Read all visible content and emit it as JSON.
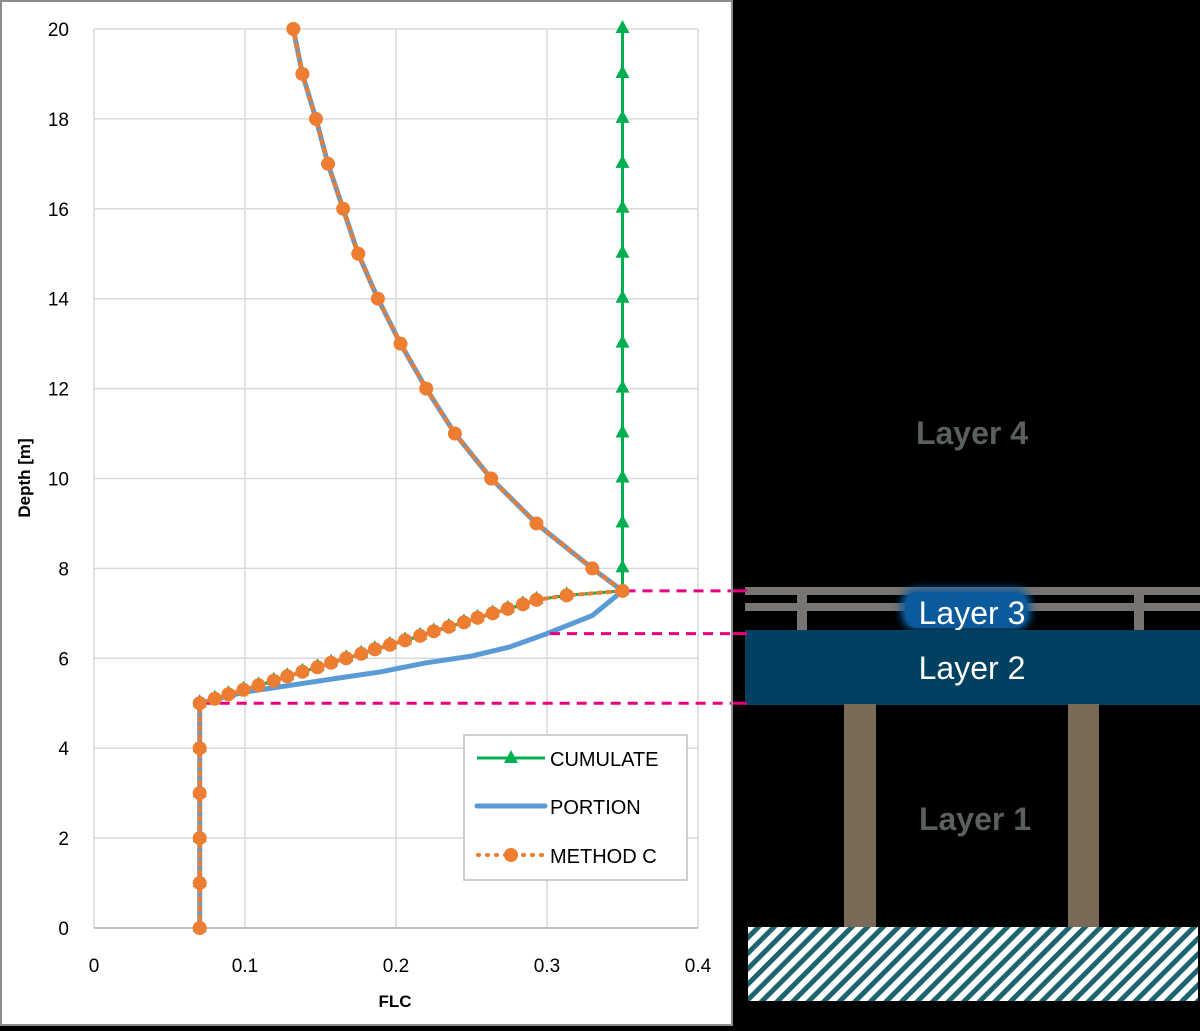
{
  "chart_data": {
    "type": "line",
    "title": "",
    "xlabel": "FLC",
    "ylabel": "Depth [m]",
    "xlim": [
      0,
      0.4
    ],
    "ylim": [
      0,
      20
    ],
    "x_ticks": [
      "0",
      "0.1",
      "0.2",
      "0.3",
      "0.4"
    ],
    "y_ticks": [
      "0",
      "2",
      "4",
      "6",
      "8",
      "10",
      "12",
      "14",
      "16",
      "18",
      "20"
    ],
    "grid": true,
    "legend_position": "lower-right inside",
    "series": [
      {
        "name": "CUMULATE",
        "color": "#00b050",
        "marker": "triangle",
        "points": [
          [
            0.07,
            0
          ],
          [
            0.07,
            1
          ],
          [
            0.07,
            2
          ],
          [
            0.07,
            3
          ],
          [
            0.07,
            4
          ],
          [
            0.07,
            5
          ],
          [
            0.08,
            5.1
          ],
          [
            0.089,
            5.2
          ],
          [
            0.099,
            5.3
          ],
          [
            0.109,
            5.4
          ],
          [
            0.119,
            5.5
          ],
          [
            0.128,
            5.6
          ],
          [
            0.138,
            5.7
          ],
          [
            0.148,
            5.8
          ],
          [
            0.157,
            5.9
          ],
          [
            0.167,
            6.0
          ],
          [
            0.177,
            6.1
          ],
          [
            0.186,
            6.2
          ],
          [
            0.196,
            6.3
          ],
          [
            0.206,
            6.4
          ],
          [
            0.216,
            6.5
          ],
          [
            0.225,
            6.6
          ],
          [
            0.235,
            6.7
          ],
          [
            0.245,
            6.8
          ],
          [
            0.254,
            6.9
          ],
          [
            0.264,
            7.0
          ],
          [
            0.274,
            7.1
          ],
          [
            0.284,
            7.2
          ],
          [
            0.293,
            7.3
          ],
          [
            0.313,
            7.4
          ],
          [
            0.35,
            7.5
          ],
          [
            0.35,
            8
          ],
          [
            0.35,
            9
          ],
          [
            0.35,
            10
          ],
          [
            0.35,
            11
          ],
          [
            0.35,
            12
          ],
          [
            0.35,
            13
          ],
          [
            0.35,
            14
          ],
          [
            0.35,
            15
          ],
          [
            0.35,
            16
          ],
          [
            0.35,
            17
          ],
          [
            0.35,
            18
          ],
          [
            0.35,
            19
          ],
          [
            0.35,
            20
          ]
        ]
      },
      {
        "name": "PORTION",
        "color": "#5b9bd5",
        "marker": "none",
        "points": [
          [
            0.07,
            0
          ],
          [
            0.07,
            1
          ],
          [
            0.07,
            2
          ],
          [
            0.07,
            3
          ],
          [
            0.07,
            4
          ],
          [
            0.07,
            5
          ],
          [
            0.1,
            5.25
          ],
          [
            0.13,
            5.4
          ],
          [
            0.16,
            5.55
          ],
          [
            0.19,
            5.7
          ],
          [
            0.22,
            5.9
          ],
          [
            0.25,
            6.05
          ],
          [
            0.275,
            6.25
          ],
          [
            0.3,
            6.55
          ],
          [
            0.33,
            6.95
          ],
          [
            0.35,
            7.5
          ],
          [
            0.33,
            8
          ],
          [
            0.293,
            9
          ],
          [
            0.263,
            10
          ],
          [
            0.239,
            11
          ],
          [
            0.22,
            12
          ],
          [
            0.203,
            13
          ],
          [
            0.188,
            14
          ],
          [
            0.175,
            15
          ],
          [
            0.165,
            16
          ],
          [
            0.155,
            17
          ],
          [
            0.147,
            18
          ],
          [
            0.138,
            19
          ],
          [
            0.132,
            20
          ]
        ]
      },
      {
        "name": "METHOD C",
        "color": "#ed7d31",
        "marker": "circle",
        "points": [
          [
            0.07,
            0
          ],
          [
            0.07,
            1
          ],
          [
            0.07,
            2
          ],
          [
            0.07,
            3
          ],
          [
            0.07,
            4
          ],
          [
            0.07,
            5
          ],
          [
            0.08,
            5.1
          ],
          [
            0.089,
            5.2
          ],
          [
            0.099,
            5.3
          ],
          [
            0.109,
            5.4
          ],
          [
            0.119,
            5.5
          ],
          [
            0.128,
            5.6
          ],
          [
            0.138,
            5.7
          ],
          [
            0.148,
            5.8
          ],
          [
            0.157,
            5.9
          ],
          [
            0.167,
            6.0
          ],
          [
            0.177,
            6.1
          ],
          [
            0.186,
            6.2
          ],
          [
            0.196,
            6.3
          ],
          [
            0.206,
            6.4
          ],
          [
            0.216,
            6.5
          ],
          [
            0.225,
            6.6
          ],
          [
            0.235,
            6.7
          ],
          [
            0.245,
            6.8
          ],
          [
            0.254,
            6.9
          ],
          [
            0.264,
            7.0
          ],
          [
            0.274,
            7.1
          ],
          [
            0.284,
            7.2
          ],
          [
            0.293,
            7.3
          ],
          [
            0.313,
            7.4
          ],
          [
            0.35,
            7.5
          ],
          [
            0.33,
            8
          ],
          [
            0.293,
            9
          ],
          [
            0.263,
            10
          ],
          [
            0.239,
            11
          ],
          [
            0.22,
            12
          ],
          [
            0.203,
            13
          ],
          [
            0.188,
            14
          ],
          [
            0.175,
            15
          ],
          [
            0.165,
            16
          ],
          [
            0.155,
            17
          ],
          [
            0.147,
            18
          ],
          [
            0.138,
            19
          ],
          [
            0.132,
            20
          ]
        ]
      }
    ],
    "annotations": [
      {
        "type": "dashed-line",
        "color": "#e6007e",
        "depth": 7.5,
        "from_x": 0.35
      },
      {
        "type": "dashed-line",
        "color": "#e6007e",
        "depth": 6.55,
        "from_x": 0.3
      },
      {
        "type": "dashed-line",
        "color": "#e6007e",
        "depth": 5.0,
        "from_x": 0.07
      }
    ]
  },
  "legend": {
    "items": [
      {
        "label": "CUMULATE",
        "color": "#00b050"
      },
      {
        "label": "PORTION",
        "color": "#5b9bd5"
      },
      {
        "label": "METHOD C",
        "color": "#ed7d31"
      }
    ]
  },
  "axes": {
    "xlabel": "FLC",
    "ylabel": "Depth [m]"
  },
  "diagram": {
    "layers": [
      {
        "label": "Layer 4"
      },
      {
        "label": "Layer 3"
      },
      {
        "label": "Layer 2"
      },
      {
        "label": "Layer 1"
      }
    ],
    "colors": {
      "layer2_fill": "#004060",
      "layer3_glow": "#0a5a9c",
      "rail": "#787472",
      "pillar": "#7a6a58",
      "ground_hatch": "#1e6470",
      "faded_label": "#5a605c",
      "marker_dash": "#e6007e"
    }
  }
}
